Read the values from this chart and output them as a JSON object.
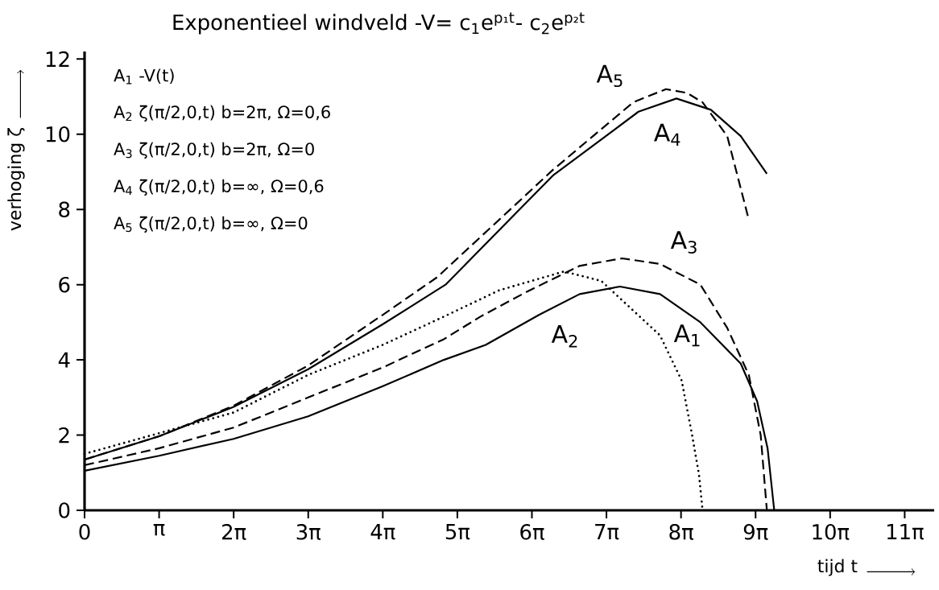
{
  "chart_data": {
    "type": "line",
    "title": "Exponentieel windveld   -V= c$_{1}$e$^{p₁t}$- c$_{2}$e$^{p₂t}$",
    "xlabel": "tijd t",
    "ylabel": "verhoging ζ",
    "annotations": [
      "A$_{1}$    -V(t)",
      "A$_{2}$    ζ(π/2,0,t)    b=2π,  Ω=0,6",
      "A$_{3}$    ζ(π/2,0,t)    b=2π,  Ω=0",
      "A$_{4}$    ζ(π/2,0,t)    b=∞,  Ω=0,6",
      "A$_{5}$    ζ(π/2,0,t)    b=∞,  Ω=0"
    ],
    "xlim": [
      0,
      35.8
    ],
    "ylim": [
      0,
      12.2
    ],
    "xticks": [
      0,
      {
        "value": 3.1416,
        "label": "π"
      },
      {
        "value": 6.2832,
        "label": "2π"
      },
      {
        "value": 9.4248,
        "label": "3π"
      },
      {
        "value": 12.5664,
        "label": "4π"
      },
      {
        "value": 15.708,
        "label": "5π"
      },
      {
        "value": 18.8496,
        "label": "6π"
      },
      {
        "value": 21.9911,
        "label": "7π"
      },
      {
        "value": 25.1327,
        "label": "8π"
      },
      {
        "value": 28.2743,
        "label": "9π"
      },
      {
        "value": 31.4159,
        "label": "10π"
      },
      {
        "value": 34.5575,
        "label": "11π"
      }
    ],
    "yticks": [
      0,
      2,
      4,
      6,
      8,
      10,
      12
    ],
    "series": [
      {
        "name": "A$_{1}$",
        "color": "#000000",
        "line_style": "dotted",
        "x": [
          0,
          3.14,
          6.28,
          9.42,
          12.57,
          15.14,
          17.47,
          20.2,
          21.77,
          24.25,
          25.16,
          25.6,
          25.89,
          26.04
        ],
        "values": [
          1.5,
          2.05,
          2.6,
          3.6,
          4.4,
          5.15,
          5.85,
          6.35,
          6.1,
          4.65,
          3.45,
          2.0,
          0.95,
          0
        ]
      },
      {
        "name": "A$_{2}$",
        "color": "#000000",
        "line_style": "solid",
        "x": [
          0,
          3.14,
          6.28,
          9.42,
          12.57,
          15.14,
          16.9,
          19.16,
          20.86,
          22.56,
          24.25,
          25.95,
          27.65,
          28.34,
          28.78,
          29.06
        ],
        "values": [
          1.05,
          1.45,
          1.9,
          2.5,
          3.3,
          4.0,
          4.4,
          5.2,
          5.75,
          5.95,
          5.75,
          5.0,
          3.9,
          2.9,
          1.65,
          0
        ]
      },
      {
        "name": "A$_{3}$",
        "color": "#000000",
        "line_style": "dashed",
        "x": [
          0,
          3.14,
          6.28,
          9.42,
          12.57,
          15.14,
          16.68,
          18.6,
          20.86,
          22.65,
          24.25,
          25.95,
          27.08,
          27.99,
          28.49,
          28.75
        ],
        "values": [
          1.2,
          1.65,
          2.2,
          3.0,
          3.8,
          4.55,
          5.15,
          5.8,
          6.5,
          6.7,
          6.55,
          6.0,
          4.85,
          3.6,
          2.0,
          0
        ]
      },
      {
        "name": "A$_{4}$",
        "color": "#000000",
        "line_style": "solid",
        "x": [
          0,
          3.14,
          6.28,
          9.42,
          12.57,
          15.21,
          19.73,
          23.34,
          24.94,
          26.39,
          27.65,
          28.75
        ],
        "values": [
          1.35,
          1.97,
          2.75,
          3.75,
          4.95,
          6.0,
          8.9,
          10.6,
          10.95,
          10.65,
          9.95,
          8.95
        ]
      },
      {
        "name": "A$_{5}$",
        "color": "#000000",
        "line_style": "dashed",
        "x": [
          0,
          3.14,
          6.28,
          9.42,
          12.57,
          14.86,
          19.73,
          23.12,
          24.5,
          25.38,
          26.04,
          27.08,
          27.96
        ],
        "values": [
          1.35,
          1.97,
          2.78,
          3.85,
          5.2,
          6.2,
          9.05,
          10.85,
          11.2,
          11.1,
          10.85,
          9.95,
          7.8
        ]
      }
    ]
  }
}
